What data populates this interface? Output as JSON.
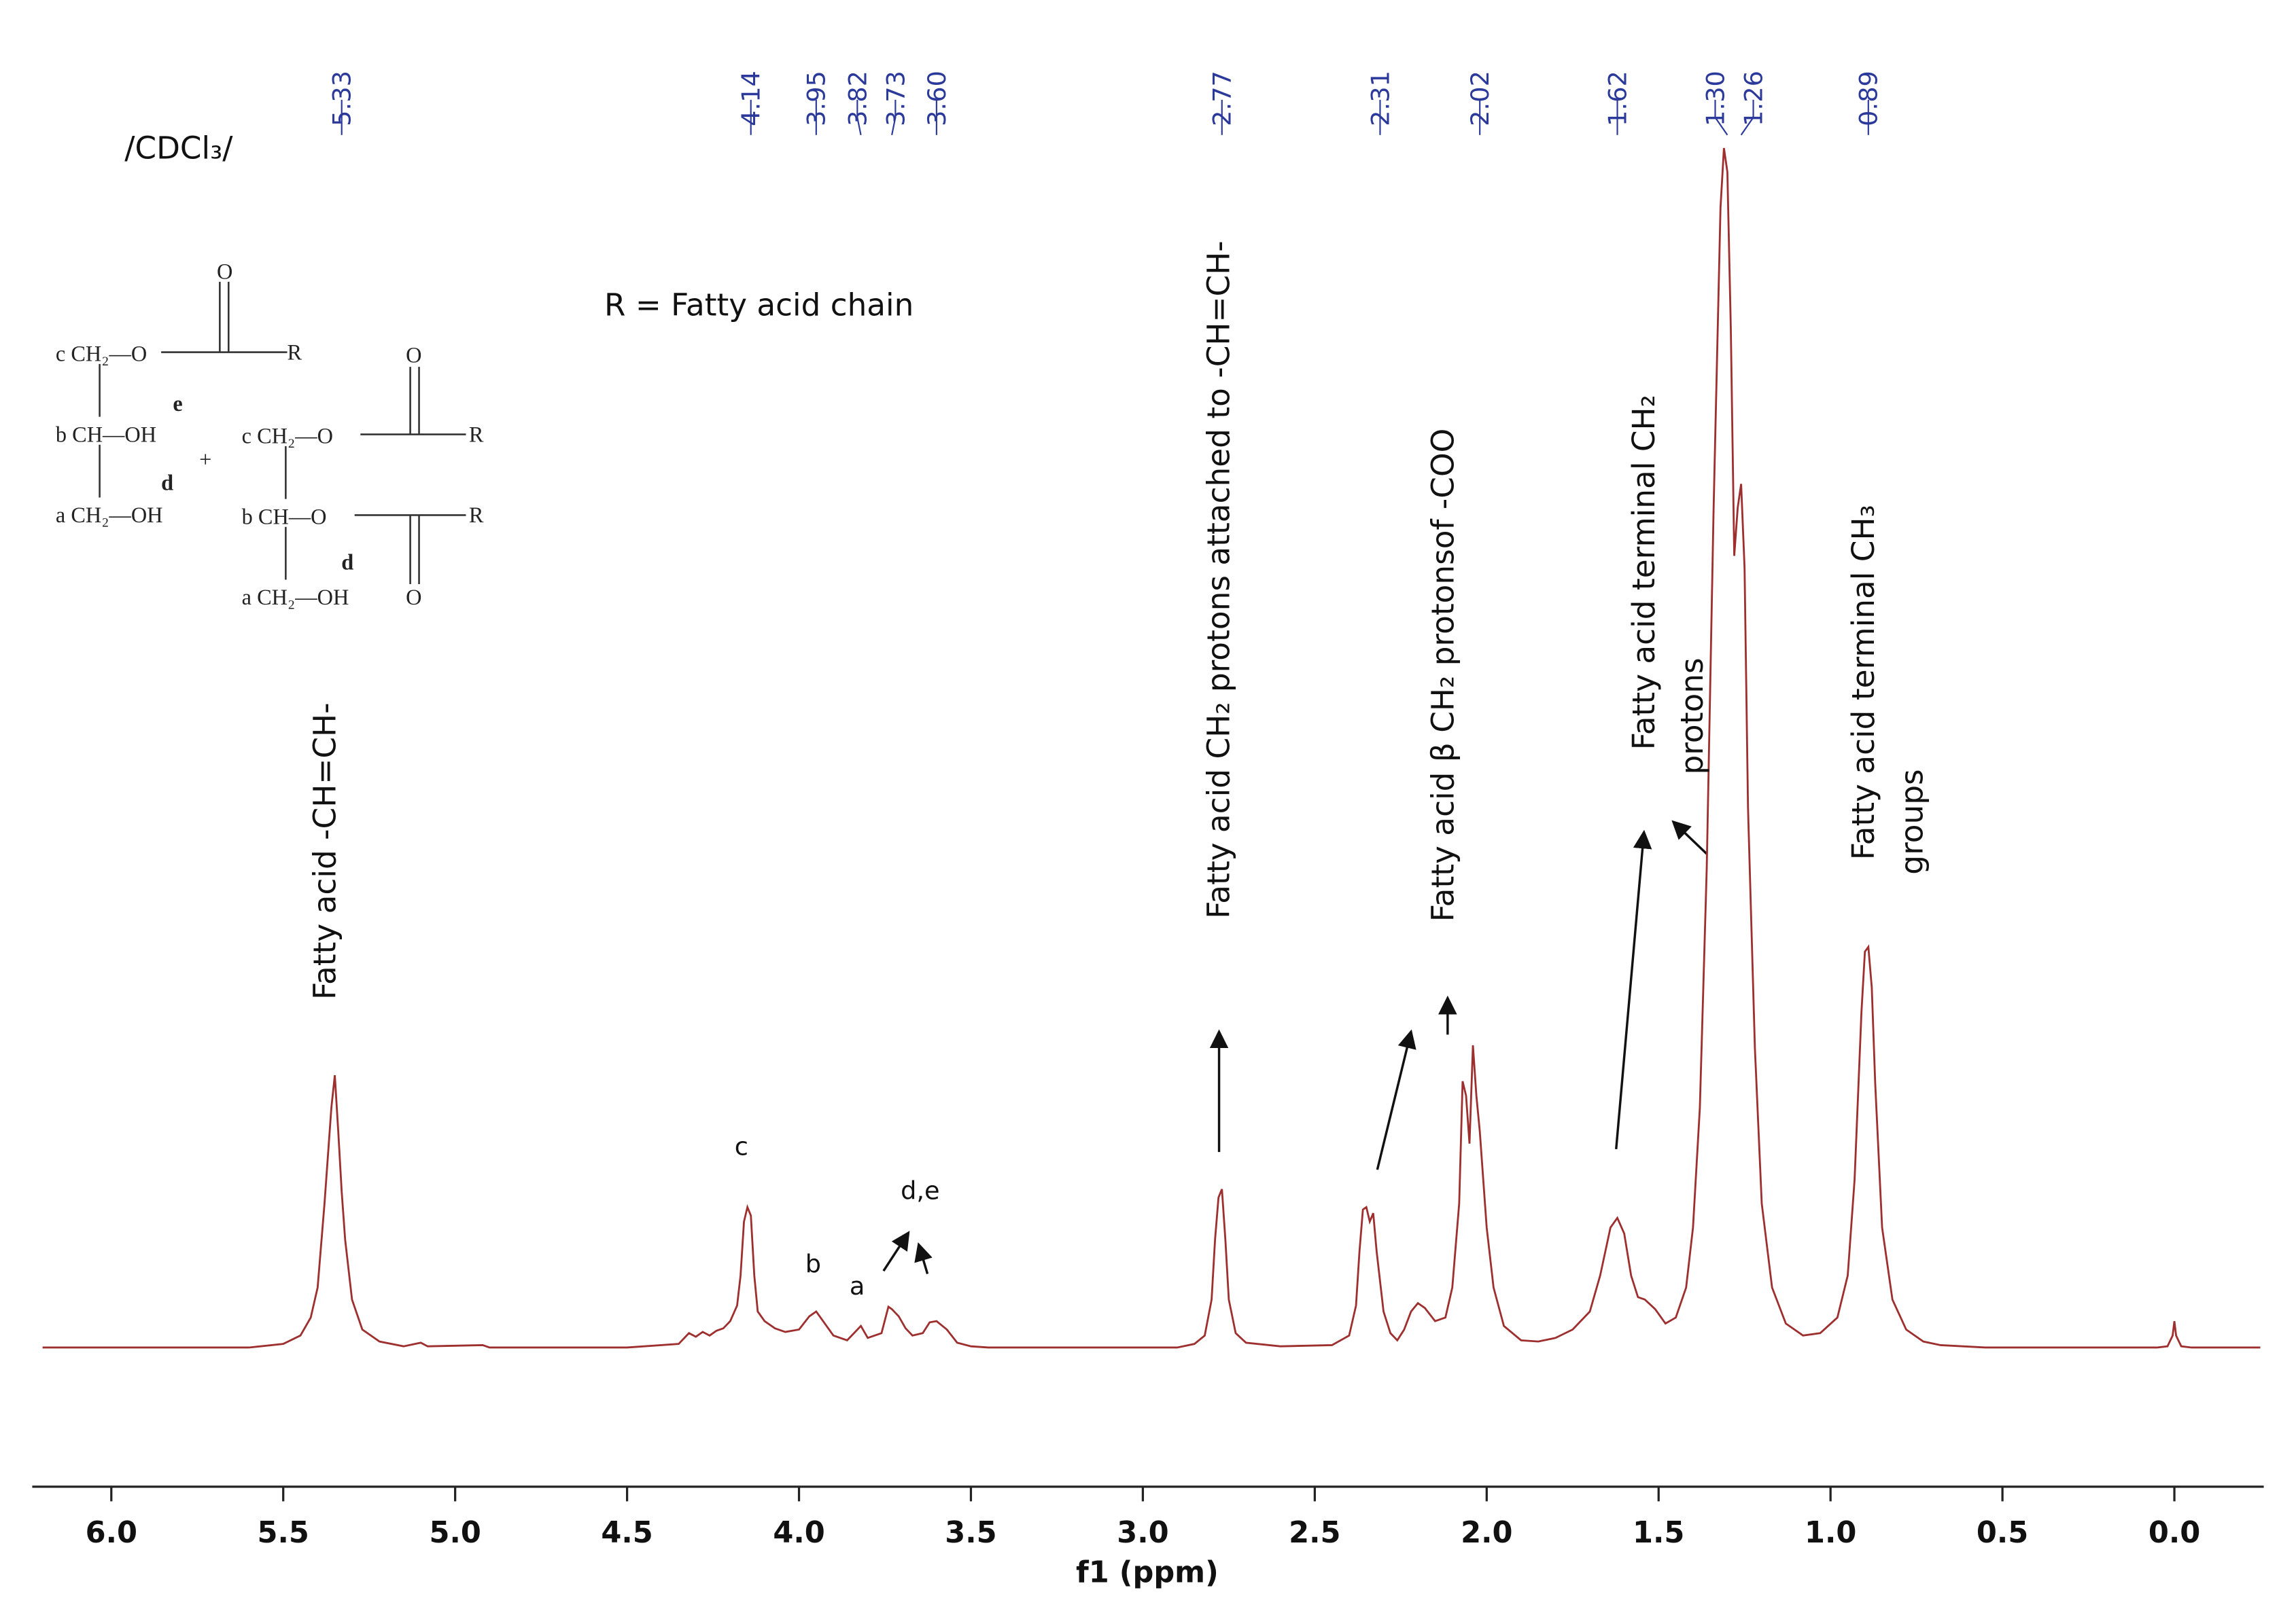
{
  "chart_data": {
    "type": "line",
    "x_label": "f1 (ppm)",
    "xlim": [
      6.23,
      -0.26
    ],
    "ylim": [
      -11.6,
      105
    ],
    "xticks": [
      {
        "value": 6,
        "label": "6.0"
      },
      5.5,
      {
        "value": 5,
        "label": "5.0"
      },
      4.5,
      {
        "value": 4,
        "label": "4.0"
      },
      3.5,
      {
        "value": 3,
        "label": "3.0"
      },
      2.5,
      {
        "value": 2,
        "label": "2.0"
      },
      1.5,
      {
        "value": 1,
        "label": "1.0"
      },
      0.5,
      {
        "value": 0,
        "label": "0.0"
      }
    ],
    "peak_labels": [
      5.33,
      4.14,
      3.95,
      3.82,
      3.73,
      {
        "value": 3.6,
        "label": "3.60"
      },
      2.77,
      2.31,
      2.02,
      1.62,
      {
        "value": 1.3,
        "label": "1.30"
      },
      1.26,
      0.89
    ],
    "x": [
      6.2,
      5.6,
      5.5,
      5.45,
      5.42,
      5.4,
      5.38,
      5.36,
      5.35,
      5.34,
      5.33,
      5.32,
      5.3,
      5.27,
      5.22,
      5.15,
      5.1,
      5.08,
      4.92,
      4.9,
      4.5,
      4.35,
      4.32,
      4.3,
      4.28,
      4.26,
      4.24,
      4.22,
      4.2,
      4.18,
      4.17,
      4.16,
      4.15,
      4.14,
      4.13,
      4.12,
      4.1,
      4.07,
      4.04,
      4.0,
      3.97,
      3.95,
      3.93,
      3.9,
      3.86,
      3.82,
      3.8,
      3.76,
      3.74,
      3.73,
      3.71,
      3.69,
      3.67,
      3.64,
      3.62,
      3.6,
      3.57,
      3.54,
      3.5,
      3.45,
      2.9,
      2.85,
      2.82,
      2.8,
      2.79,
      2.78,
      2.77,
      2.76,
      2.75,
      2.73,
      2.7,
      2.6,
      2.45,
      2.4,
      2.38,
      2.37,
      2.36,
      2.35,
      2.34,
      2.33,
      2.32,
      2.3,
      2.28,
      2.26,
      2.24,
      2.22,
      2.2,
      2.18,
      2.15,
      2.12,
      2.1,
      2.08,
      2.07,
      2.06,
      2.05,
      2.04,
      2.03,
      2.02,
      2.01,
      2.0,
      1.98,
      1.95,
      1.9,
      1.85,
      1.8,
      1.75,
      1.7,
      1.67,
      1.64,
      1.62,
      1.6,
      1.58,
      1.56,
      1.54,
      1.51,
      1.48,
      1.45,
      1.42,
      1.4,
      1.38,
      1.36,
      1.34,
      1.32,
      1.31,
      1.3,
      1.29,
      1.28,
      1.27,
      1.26,
      1.25,
      1.24,
      1.22,
      1.2,
      1.17,
      1.13,
      1.08,
      1.03,
      0.98,
      0.95,
      0.93,
      0.91,
      0.9,
      0.89,
      0.88,
      0.87,
      0.85,
      0.82,
      0.78,
      0.73,
      0.68,
      0.55,
      0.05,
      0.02,
      0.005,
      0.0,
      -0.005,
      -0.02,
      -0.05,
      -0.25
    ],
    "series": [
      {
        "color": "#9e2f2f",
        "values": [
          0,
          0,
          0.3,
          1,
          2.5,
          5,
          12,
          20,
          22.7,
          18,
          13,
          9,
          4,
          1.5,
          0.5,
          0.1,
          0.4,
          0.1,
          0.2,
          0,
          0,
          0.3,
          1.2,
          0.9,
          1.3,
          1,
          1.4,
          1.6,
          2.2,
          3.5,
          6,
          10.5,
          11.7,
          11,
          6,
          3,
          2.2,
          1.6,
          1.3,
          1.5,
          2.6,
          3,
          2.2,
          1,
          0.6,
          1.8,
          0.8,
          1.2,
          3.4,
          3.2,
          2.6,
          1.6,
          1,
          1.2,
          2.1,
          2.2,
          1.5,
          0.4,
          0.1,
          0,
          0,
          0.3,
          1,
          4,
          9,
          12.5,
          13.2,
          9,
          4,
          1.2,
          0.4,
          0.1,
          0.2,
          1,
          3.5,
          8,
          11.5,
          11.7,
          10.5,
          11.2,
          8,
          3,
          1.2,
          0.6,
          1.5,
          3,
          3.7,
          3.3,
          2.2,
          2.5,
          5,
          12,
          22.2,
          21,
          17,
          25.2,
          21,
          18,
          14,
          10,
          5,
          1.8,
          0.6,
          0.5,
          0.8,
          1.5,
          3,
          6,
          10,
          10.8,
          9.5,
          6,
          4.2,
          4,
          3.2,
          2,
          2.5,
          5,
          10,
          20,
          40,
          70,
          95,
          100,
          98,
          85,
          66,
          70,
          72,
          65,
          45,
          25,
          12,
          5,
          2,
          1,
          1.2,
          2.5,
          6,
          14,
          28,
          33,
          33.4,
          30,
          22,
          10,
          4,
          1.5,
          0.5,
          0.2,
          0,
          0,
          0.1,
          1,
          2.2,
          1,
          0.1,
          0,
          0
        ]
      }
    ],
    "annotations": [
      "Fatty acid  -CH=CH-",
      "Fatty acid  CH₂ protons attached to -CH=CH-",
      "Fatty acid  β CH₂ protonsof -COO",
      "Fatty acid  terminal CH₂",
      "protons",
      "Fatty acid terminal CH₃",
      "groups"
    ],
    "letters": [
      "c",
      "b",
      "a",
      "d,e"
    ],
    "solvent": "/CDCl₃/",
    "r_note": "R = Fatty acid chain",
    "structure": {
      "mono": [
        "c CH₂—O",
        "b CH—OH",
        "a CH₂—OH"
      ],
      "mono_marks": [
        "e",
        "d"
      ],
      "plus": "+",
      "di": [
        "c CH₂—O",
        "b CH—O",
        "a CH₂—OH"
      ],
      "di_marks": [
        "d"
      ],
      "carbonyl": "O",
      "r": "R"
    }
  }
}
